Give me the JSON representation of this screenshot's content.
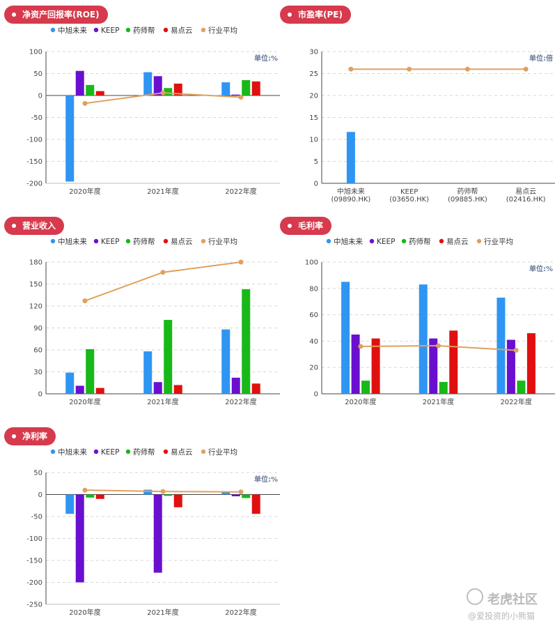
{
  "legend_colors": {
    "中旭未来": "#2f95f3",
    "KEEP": "#6a0fd0",
    "药师帮": "#18b818",
    "易点云": "#e01010",
    "行业平均": "#e0a060"
  },
  "watermark": {
    "brand": "老虎社区",
    "user": "@爱投资的小熊猫"
  },
  "chart_data": [
    {
      "id": "roe",
      "type": "bar",
      "title": "净资产回报率(ROE)",
      "unit": "单位:%",
      "categories": [
        "2020年度",
        "2021年度",
        "2022年度"
      ],
      "ylim": [
        -200,
        100
      ],
      "yticks": [
        100,
        50,
        0,
        -50,
        -100,
        -150,
        -200
      ],
      "series": [
        {
          "name": "中旭未来",
          "values": [
            -196,
            53,
            30
          ]
        },
        {
          "name": "KEEP",
          "values": [
            56,
            44,
            2
          ]
        },
        {
          "name": "药师帮",
          "values": [
            24,
            17,
            35
          ]
        },
        {
          "name": "易点云",
          "values": [
            10,
            27,
            32
          ]
        }
      ],
      "line": {
        "name": "行业平均",
        "values": [
          -18,
          6,
          -4
        ]
      }
    },
    {
      "id": "pe",
      "type": "bar",
      "title": "市盈率(PE)",
      "unit": "单位:倍",
      "categories": [
        "中旭未来\n(09890.HK)",
        "KEEP\n(03650.HK)",
        "药师帮\n(09885.HK)",
        "易点云\n(02416.HK)"
      ],
      "ylim": [
        0,
        30
      ],
      "yticks": [
        30,
        25,
        20,
        15,
        10,
        5,
        0
      ],
      "bars": [
        11.7,
        0,
        0,
        0
      ],
      "line": {
        "name": "行业平均",
        "values": [
          26,
          26,
          26,
          26
        ]
      }
    },
    {
      "id": "revenue",
      "type": "bar",
      "title": "营业收入",
      "unit": "",
      "categories": [
        "2020年度",
        "2021年度",
        "2022年度"
      ],
      "ylim": [
        0,
        180
      ],
      "yticks": [
        180,
        150,
        120,
        90,
        60,
        30,
        0
      ],
      "series": [
        {
          "name": "中旭未来",
          "values": [
            29,
            58,
            88
          ]
        },
        {
          "name": "KEEP",
          "values": [
            11,
            16,
            22
          ]
        },
        {
          "name": "药师帮",
          "values": [
            61,
            101,
            143
          ]
        },
        {
          "name": "易点云",
          "values": [
            8,
            12,
            14
          ]
        }
      ],
      "line": {
        "name": "行业平均",
        "values": [
          127,
          166,
          180
        ]
      }
    },
    {
      "id": "gross_margin",
      "type": "bar",
      "title": "毛利率",
      "unit": "单位:%",
      "categories": [
        "2020年度",
        "2021年度",
        "2022年度"
      ],
      "ylim": [
        0,
        100
      ],
      "yticks": [
        100,
        80,
        60,
        40,
        20,
        0
      ],
      "series": [
        {
          "name": "中旭未来",
          "values": [
            85,
            83,
            73
          ]
        },
        {
          "name": "KEEP",
          "values": [
            45,
            42,
            41
          ]
        },
        {
          "name": "药师帮",
          "values": [
            10,
            9,
            10
          ]
        },
        {
          "name": "易点云",
          "values": [
            42,
            48,
            46
          ]
        }
      ],
      "line": {
        "name": "行业平均",
        "values": [
          36,
          36.5,
          33
        ]
      }
    },
    {
      "id": "net_margin",
      "type": "bar",
      "title": "净利率",
      "unit": "单位:%",
      "categories": [
        "2020年度",
        "2021年度",
        "2022年度"
      ],
      "ylim": [
        -250,
        50
      ],
      "yticks": [
        50,
        0,
        -50,
        -100,
        -150,
        -200,
        -250
      ],
      "series": [
        {
          "name": "中旭未来",
          "values": [
            -44,
            11,
            6
          ]
        },
        {
          "name": "KEEP",
          "values": [
            -200,
            -178,
            -4
          ]
        },
        {
          "name": "药师帮",
          "values": [
            -7,
            -3,
            -8
          ]
        },
        {
          "name": "易点云",
          "values": [
            -10,
            -29,
            -44
          ]
        }
      ],
      "line": {
        "name": "行业平均",
        "values": [
          10,
          7,
          6
        ]
      }
    }
  ]
}
